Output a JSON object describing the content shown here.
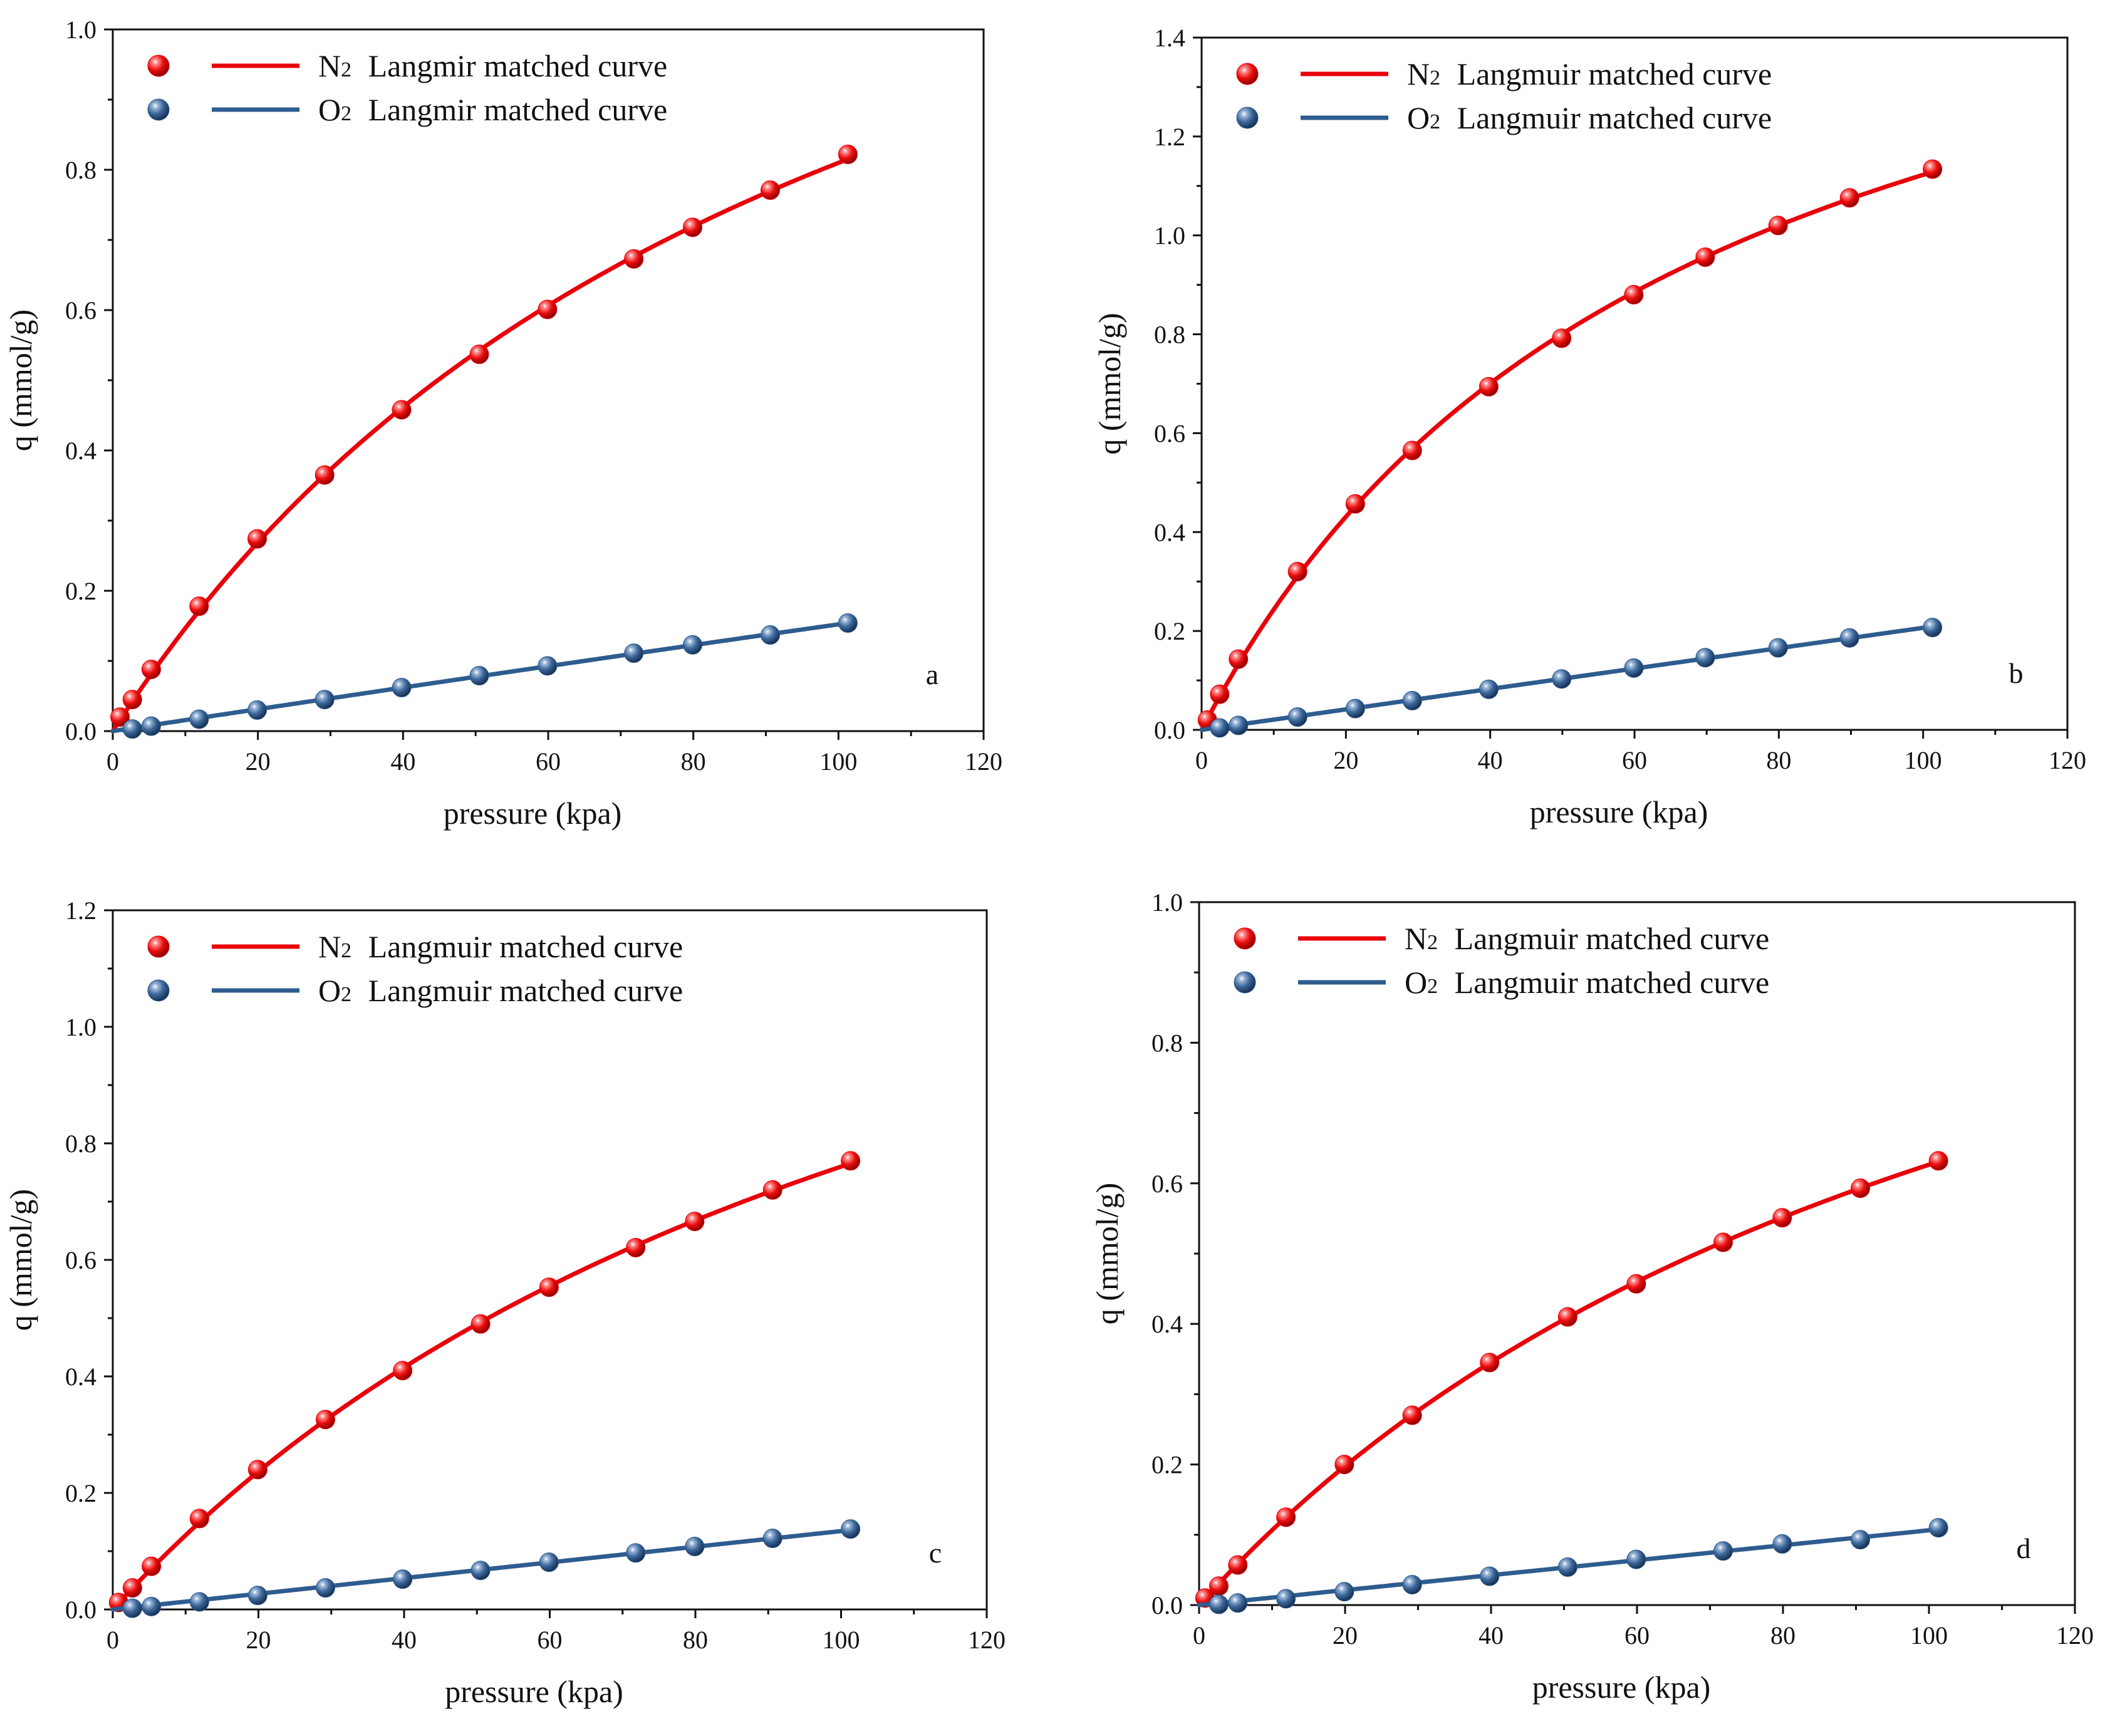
{
  "chart_data": [
    {
      "type": "scatter",
      "panel_label": "a",
      "xlabel": "pressure (kpa)",
      "ylabel": "q (mmol/g)",
      "xlim": [
        0,
        120
      ],
      "ylim": [
        0,
        1.0
      ],
      "x_ticks": [
        "0",
        "20",
        "40",
        "60",
        "80",
        "100",
        "120"
      ],
      "y_ticks": [
        "0.0",
        "0.2",
        "0.4",
        "0.6",
        "0.8",
        "1.0"
      ],
      "legend_position": "top-left",
      "legend": [
        {
          "symbol": "N2",
          "gas": "N",
          "sub": "2",
          "text": "Langmir matched curve"
        },
        {
          "symbol": "O2",
          "gas": "O",
          "sub": "2",
          "text": "Langmir matched curve"
        }
      ],
      "series": [
        {
          "name": "N2",
          "color": "#e8000b",
          "x": [
            1,
            2.7,
            5.3,
            11.9,
            19.9,
            29.2,
            39.8,
            50.5,
            59.9,
            71.8,
            79.9,
            90.6,
            101.3
          ],
          "y": [
            0.02,
            0.045,
            0.088,
            0.178,
            0.274,
            0.365,
            0.458,
            0.537,
            0.601,
            0.673,
            0.718,
            0.771,
            0.822
          ]
        },
        {
          "name": "O2",
          "color": "#2e5c8f",
          "x": [
            2.7,
            5.3,
            11.9,
            19.9,
            29.2,
            39.8,
            50.5,
            59.9,
            71.8,
            79.9,
            90.6,
            101.3
          ],
          "y": [
            0.003,
            0.007,
            0.017,
            0.03,
            0.045,
            0.062,
            0.079,
            0.093,
            0.111,
            0.123,
            0.137,
            0.154
          ]
        }
      ]
    },
    {
      "type": "scatter",
      "panel_label": "b",
      "xlabel": "pressure (kpa)",
      "ylabel": "q (mmol/g)",
      "xlim": [
        0,
        120
      ],
      "ylim": [
        0,
        1.4
      ],
      "x_ticks": [
        "0",
        "20",
        "40",
        "60",
        "80",
        "100",
        "120"
      ],
      "y_ticks": [
        "0.0",
        "0.2",
        "0.4",
        "0.6",
        "0.8",
        "1.0",
        "1.2",
        "1.4"
      ],
      "legend_position": "top-left",
      "legend": [
        {
          "symbol": "N2",
          "gas": "N",
          "sub": "2",
          "text": "Langmuir matched curve"
        },
        {
          "symbol": "O2",
          "gas": "O",
          "sub": "2",
          "text": "Langmuir matched curve"
        }
      ],
      "series": [
        {
          "name": "N2",
          "color": "#e8000b",
          "x": [
            0.8,
            2.5,
            5.1,
            13.3,
            21.3,
            29.2,
            39.8,
            49.9,
            59.9,
            69.8,
            79.9,
            89.8,
            101.3
          ],
          "y": [
            0.02,
            0.072,
            0.143,
            0.32,
            0.457,
            0.565,
            0.694,
            0.792,
            0.88,
            0.956,
            1.02,
            1.076,
            1.134
          ]
        },
        {
          "name": "O2",
          "color": "#2e5c8f",
          "x": [
            2.5,
            5.1,
            13.3,
            21.3,
            29.2,
            39.8,
            49.9,
            59.9,
            69.8,
            79.9,
            89.8,
            101.3
          ],
          "y": [
            0.004,
            0.009,
            0.026,
            0.043,
            0.059,
            0.082,
            0.103,
            0.125,
            0.146,
            0.166,
            0.186,
            0.207
          ]
        }
      ]
    },
    {
      "type": "scatter",
      "panel_label": "c",
      "xlabel": "pressure (kpa)",
      "ylabel": "q (mmol/g)",
      "xlim": [
        0,
        120
      ],
      "ylim": [
        0,
        1.2
      ],
      "x_ticks": [
        "0",
        "20",
        "40",
        "60",
        "80",
        "100",
        "120"
      ],
      "y_ticks": [
        "0.0",
        "0.2",
        "0.4",
        "0.6",
        "0.8",
        "1.0",
        "1.2"
      ],
      "legend_position": "top-left",
      "legend": [
        {
          "symbol": "N2",
          "gas": "N",
          "sub": "2",
          "text": "Langmuir matched curve"
        },
        {
          "symbol": "O2",
          "gas": "O",
          "sub": "2",
          "text": "Langmuir matched curve"
        }
      ],
      "series": [
        {
          "name": "N2",
          "color": "#e8000b",
          "x": [
            0.8,
            2.7,
            5.3,
            11.9,
            19.9,
            29.2,
            39.8,
            50.5,
            59.9,
            71.8,
            79.9,
            90.6,
            101.3
          ],
          "y": [
            0.012,
            0.037,
            0.074,
            0.156,
            0.24,
            0.326,
            0.41,
            0.49,
            0.553,
            0.621,
            0.666,
            0.72,
            0.77
          ]
        },
        {
          "name": "O2",
          "color": "#2e5c8f",
          "x": [
            2.7,
            5.3,
            11.9,
            19.9,
            29.2,
            39.8,
            50.5,
            59.9,
            71.8,
            79.9,
            90.6,
            101.3
          ],
          "y": [
            0.002,
            0.005,
            0.013,
            0.024,
            0.037,
            0.052,
            0.067,
            0.081,
            0.097,
            0.108,
            0.122,
            0.138
          ]
        }
      ]
    },
    {
      "type": "scatter",
      "panel_label": "d",
      "xlabel": "pressure (kpa)",
      "ylabel": "q (mmol/g)",
      "xlim": [
        0,
        120
      ],
      "ylim": [
        0,
        1.0
      ],
      "x_ticks": [
        "0",
        "20",
        "40",
        "60",
        "80",
        "100",
        "120"
      ],
      "y_ticks": [
        "0.0",
        "0.2",
        "0.4",
        "0.6",
        "0.8",
        "1.0"
      ],
      "legend_position": "top-left",
      "legend": [
        {
          "symbol": "N2",
          "gas": "N",
          "sub": "2",
          "text": "Langmuir matched curve"
        },
        {
          "symbol": "O2",
          "gas": "O",
          "sub": "2",
          "text": "Langmuir matched curve"
        }
      ],
      "series": [
        {
          "name": "N2",
          "color": "#e8000b",
          "x": [
            0.8,
            2.7,
            5.3,
            11.9,
            19.9,
            29.2,
            39.8,
            50.5,
            59.9,
            71.8,
            79.9,
            90.6,
            101.3
          ],
          "y": [
            0.01,
            0.027,
            0.057,
            0.125,
            0.2,
            0.27,
            0.345,
            0.41,
            0.457,
            0.516,
            0.551,
            0.593,
            0.632
          ]
        },
        {
          "name": "O2",
          "color": "#2e5c8f",
          "x": [
            2.7,
            5.3,
            11.9,
            19.9,
            29.2,
            39.8,
            50.5,
            59.9,
            71.8,
            79.9,
            90.6,
            101.3
          ],
          "y": [
            0.001,
            0.003,
            0.009,
            0.019,
            0.029,
            0.041,
            0.054,
            0.065,
            0.077,
            0.087,
            0.093,
            0.11
          ]
        }
      ]
    }
  ]
}
